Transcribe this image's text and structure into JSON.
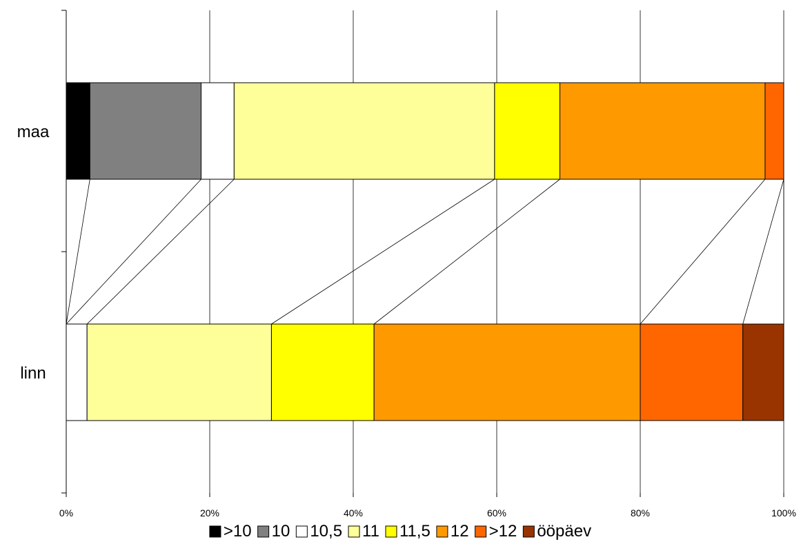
{
  "chart_data": {
    "type": "bar",
    "orientation": "horizontal",
    "stacked": "percent",
    "series_lines": true,
    "categories": [
      "maa",
      "linn"
    ],
    "x_ticks": [
      "0%",
      "20%",
      "40%",
      "60%",
      "80%",
      "100%"
    ],
    "xlim": [
      0,
      100
    ],
    "grid": true,
    "legend_position": "bottom",
    "series": [
      {
        "name": ">10",
        "color": "#000000",
        "values": [
          3.3,
          0
        ]
      },
      {
        "name": "10",
        "color": "#808080",
        "values": [
          15.5,
          0
        ]
      },
      {
        "name": "10,5",
        "color": "#ffffff",
        "values": [
          4.6,
          2.9
        ]
      },
      {
        "name": "11",
        "color": "#ffff99",
        "values": [
          36.3,
          25.7
        ]
      },
      {
        "name": "11,5",
        "color": "#ffff00",
        "values": [
          9.1,
          14.3
        ]
      },
      {
        "name": "12",
        "color": "#ff9900",
        "values": [
          28.6,
          37.1
        ]
      },
      {
        "name": ">12",
        "color": "#ff6600",
        "values": [
          2.6,
          14.3
        ]
      },
      {
        "name": "ööpäev",
        "color": "#993300",
        "values": [
          0,
          5.7
        ]
      }
    ]
  }
}
